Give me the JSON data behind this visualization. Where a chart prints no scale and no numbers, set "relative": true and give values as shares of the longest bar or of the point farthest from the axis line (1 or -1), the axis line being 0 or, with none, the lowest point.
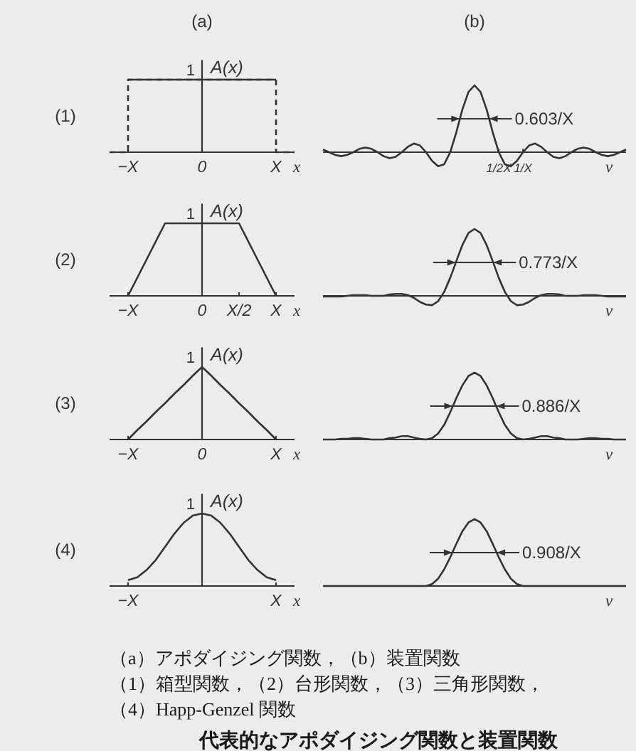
{
  "chart_data": [
    {
      "type": "line",
      "title": "(a)",
      "xlabel": "x",
      "ylabel": "A(x)",
      "relative": true,
      "categories": [
        null,
        null,
        "−X",
        null,
        null,
        null,
        null,
        null,
        null,
        null,
        "0",
        null,
        null,
        null,
        null,
        null,
        null,
        null,
        "X",
        null,
        null
      ],
      "series": [
        {
          "type": "step",
          "color": "#333333",
          "line_style": "dashed",
          "values": [
            0,
            0,
            1,
            1,
            1,
            1,
            1,
            1,
            1,
            1,
            1,
            1,
            1,
            1,
            1,
            1,
            1,
            1,
            0,
            0,
            0
          ]
        },
        {
          "color": "#333333",
          "values": [
            null,
            null,
            1,
            1,
            1,
            1,
            1,
            1,
            1,
            1,
            1,
            1,
            1,
            1,
            1,
            1,
            1,
            1,
            1,
            null,
            null
          ]
        }
      ],
      "annotations": [
        "(1)",
        "1"
      ]
    },
    {
      "type": "line",
      "title": "(b)",
      "xlabel": "ν",
      "relative": true,
      "categories": [
        null,
        null,
        null,
        null,
        null,
        null,
        null,
        null,
        null,
        null,
        null,
        null,
        null,
        null,
        null,
        null,
        null,
        null,
        null,
        null,
        null,
        null,
        null,
        null,
        null,
        null,
        null,
        null,
        null,
        "1/2X",
        null,
        null,
        null,
        "1/X",
        null,
        null,
        null,
        null,
        null,
        null,
        null,
        null,
        null,
        null,
        null,
        null,
        null,
        null,
        null,
        null,
        null
      ],
      "series": [
        {
          "color": "#333333",
          "values": [
            0.04,
            0,
            -0.04,
            -0.06,
            -0.04,
            0,
            0.05,
            0.07,
            0.05,
            0,
            -0.06,
            -0.09,
            -0.07,
            0,
            0.08,
            0.13,
            0.1,
            0,
            -0.13,
            -0.21,
            -0.18,
            0,
            0.3,
            0.64,
            0.9,
            1,
            0.9,
            0.64,
            0.3,
            0,
            -0.18,
            -0.21,
            -0.13,
            0,
            0.1,
            0.13,
            0.08,
            0,
            -0.07,
            -0.09,
            -0.06,
            0,
            0.05,
            0.07,
            0.05,
            0,
            -0.04,
            -0.06,
            -0.04,
            0,
            0.04
          ]
        }
      ],
      "annotations": [
        "0.603/X"
      ]
    },
    {
      "type": "line",
      "xlabel": "x",
      "ylabel": "A(x)",
      "relative": true,
      "categories": [
        null,
        null,
        "−X",
        null,
        null,
        null,
        null,
        null,
        null,
        null,
        "0",
        null,
        null,
        null,
        "X/2",
        null,
        null,
        null,
        "X",
        null,
        null
      ],
      "series": [
        {
          "color": "#333333",
          "values": [
            null,
            null,
            0,
            0.25,
            0.5,
            0.75,
            1,
            1,
            1,
            1,
            1,
            1,
            1,
            1,
            1,
            0.75,
            0.5,
            0.25,
            0,
            null,
            null
          ]
        }
      ],
      "annotations": [
        "(2)",
        "1"
      ]
    },
    {
      "type": "line",
      "xlabel": "ν",
      "relative": true,
      "categories": [
        null,
        null,
        null,
        null,
        null,
        null,
        null,
        null,
        null,
        null,
        null,
        null,
        null,
        null,
        null,
        null,
        null,
        null,
        null,
        null,
        null,
        null,
        null,
        null,
        null,
        null,
        null,
        null,
        null,
        null,
        null,
        null,
        null,
        null,
        null,
        null,
        null,
        null,
        null,
        null,
        null,
        null,
        null,
        null,
        null,
        null,
        null,
        null,
        null,
        null,
        null
      ],
      "series": [
        {
          "color": "#333333",
          "values": [
            -0.01,
            -0.01,
            -0.01,
            -0.01,
            0,
            0.01,
            0.01,
            0.01,
            0,
            0,
            0,
            0.02,
            0.03,
            0.03,
            0.01,
            -0.03,
            -0.09,
            -0.13,
            -0.14,
            -0.08,
            0.06,
            0.27,
            0.52,
            0.76,
            0.94,
            1,
            0.94,
            0.76,
            0.52,
            0.27,
            0.06,
            -0.08,
            -0.14,
            -0.13,
            -0.09,
            -0.03,
            0.01,
            0.03,
            0.03,
            0.02,
            0,
            0,
            0,
            0.01,
            0.01,
            0.01,
            0,
            -0.01,
            -0.01,
            -0.01,
            -0.01
          ]
        }
      ],
      "annotations": [
        "0.773/X"
      ]
    },
    {
      "type": "line",
      "xlabel": "x",
      "ylabel": "A(x)",
      "relative": true,
      "categories": [
        null,
        null,
        "−X",
        null,
        null,
        null,
        null,
        null,
        null,
        null,
        "0",
        null,
        null,
        null,
        null,
        null,
        null,
        null,
        "X",
        null,
        null
      ],
      "series": [
        {
          "color": "#333333",
          "values": [
            null,
            null,
            0,
            0.13,
            0.25,
            0.38,
            0.5,
            0.63,
            0.75,
            0.88,
            1,
            0.88,
            0.75,
            0.63,
            0.5,
            0.38,
            0.25,
            0.13,
            0,
            null,
            null
          ]
        }
      ],
      "annotations": [
        "(3)",
        "1"
      ]
    },
    {
      "type": "line",
      "xlabel": "ν",
      "relative": true,
      "categories": [
        null,
        null,
        null,
        null,
        null,
        null,
        null,
        null,
        null,
        null,
        null,
        null,
        null,
        null,
        null,
        null,
        null,
        null,
        null,
        null,
        null,
        null,
        null,
        null,
        null,
        null,
        null,
        null,
        null,
        null,
        null,
        null,
        null,
        null,
        null,
        null,
        null,
        null,
        null,
        null,
        null,
        null,
        null,
        null,
        null,
        null,
        null,
        null,
        null,
        null,
        null
      ],
      "series": [
        {
          "color": "#333333",
          "values": [
            0,
            0,
            0,
            0.01,
            0.01,
            0.02,
            0.02,
            0.01,
            0,
            0,
            0,
            0.02,
            0.03,
            0.05,
            0.05,
            0.03,
            0.01,
            0,
            0.02,
            0.09,
            0.22,
            0.41,
            0.62,
            0.81,
            0.95,
            1,
            0.95,
            0.81,
            0.62,
            0.41,
            0.22,
            0.09,
            0.02,
            0,
            0.01,
            0.03,
            0.05,
            0.05,
            0.03,
            0.02,
            0,
            0,
            0,
            0.01,
            0.02,
            0.02,
            0.01,
            0.01,
            0,
            0,
            0
          ]
        }
      ],
      "annotations": [
        "0.886/X"
      ]
    },
    {
      "type": "line",
      "xlabel": "x",
      "ylabel": "A(x)",
      "relative": true,
      "categories": [
        null,
        null,
        "−X",
        null,
        null,
        null,
        null,
        null,
        null,
        null,
        null,
        null,
        null,
        null,
        null,
        null,
        null,
        null,
        "X",
        null,
        null
      ],
      "series": [
        {
          "color": "#333333",
          "values": [
            null,
            null,
            0.08,
            0.12,
            0.22,
            0.36,
            0.54,
            0.72,
            0.87,
            0.97,
            1,
            0.97,
            0.87,
            0.72,
            0.54,
            0.36,
            0.22,
            0.12,
            0.08,
            null,
            null
          ]
        }
      ],
      "annotations": [
        "(4)",
        "1"
      ]
    },
    {
      "type": "line",
      "xlabel": "ν",
      "relative": true,
      "categories": [
        null,
        null,
        null,
        null,
        null,
        null,
        null,
        null,
        null,
        null,
        null,
        null,
        null,
        null,
        null,
        null,
        null,
        null,
        null,
        null,
        null,
        null,
        null,
        null,
        null,
        null,
        null,
        null,
        null,
        null,
        null,
        null,
        null,
        null,
        null,
        null,
        null,
        null,
        null,
        null,
        null,
        null,
        null,
        null,
        null,
        null,
        null,
        null,
        null,
        null,
        null
      ],
      "series": [
        {
          "color": "#333333",
          "values": [
            0,
            0,
            0,
            0,
            0,
            0,
            0,
            0,
            0,
            0,
            0,
            0,
            0,
            0,
            0,
            0,
            0,
            0,
            0.03,
            0.11,
            0.25,
            0.43,
            0.63,
            0.82,
            0.95,
            1,
            0.95,
            0.82,
            0.63,
            0.43,
            0.25,
            0.11,
            0.03,
            0,
            0,
            0,
            0,
            0,
            0,
            0,
            0,
            0,
            0,
            0,
            0,
            0,
            0,
            0,
            0,
            0,
            0
          ]
        }
      ],
      "annotations": [
        "0.908/X",
        "（a）アポダイジング関数，（b）装置関数",
        "（1）箱型関数，（2）台形関数，（3）三角形関数，",
        "（4）Happ-Genzel 関数",
        "代表的なアポダイジング関数と装置関数"
      ]
    }
  ]
}
